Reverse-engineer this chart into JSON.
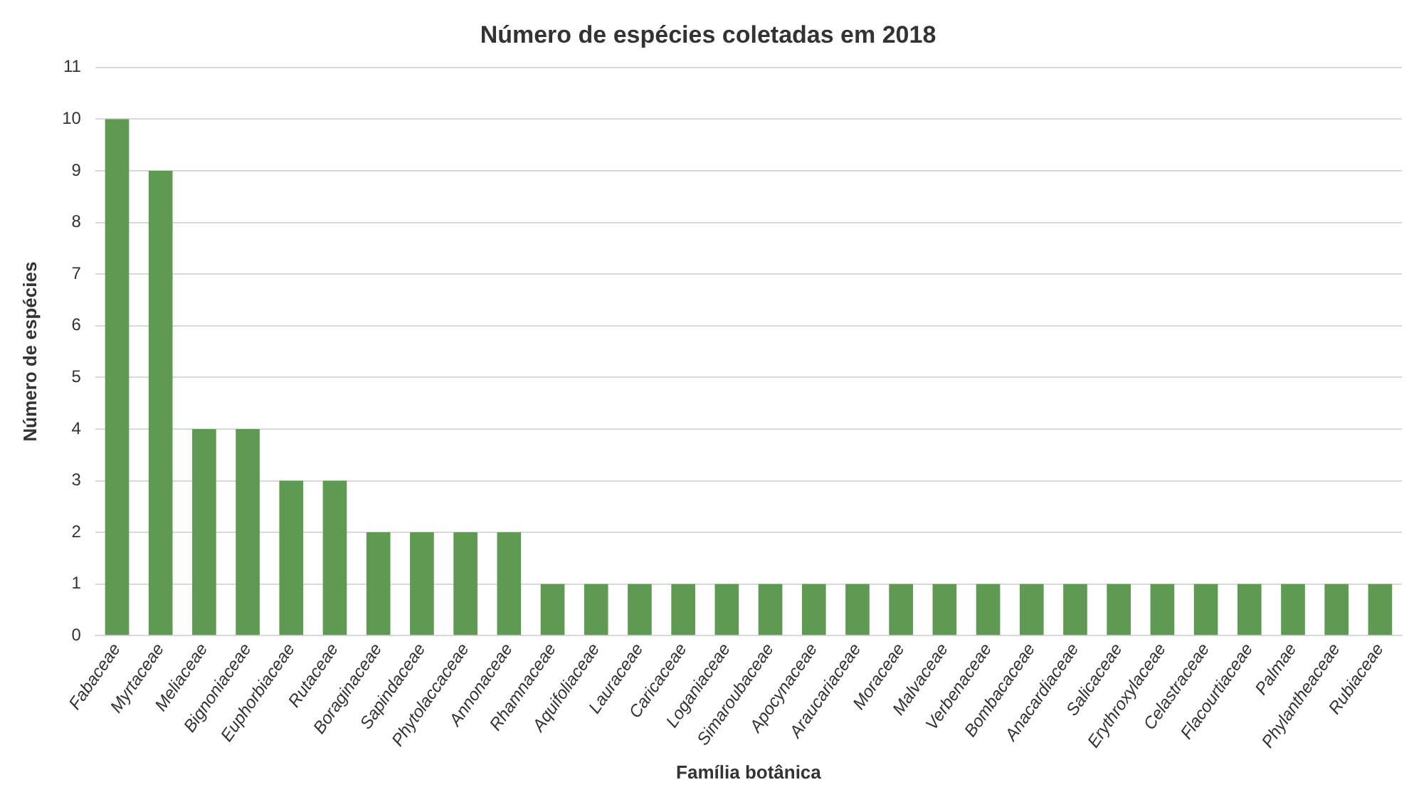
{
  "chart_data": {
    "type": "bar",
    "title": "Número de espécies coletadas em 2018",
    "xlabel": "Família botânica",
    "ylabel": "Número de espécies",
    "categories": [
      "Fabaceae",
      "Myrtaceae",
      "Meliaceae",
      "Bignoniaceae",
      "Euphorbiaceae",
      "Rutaceae",
      "Boraginaceae",
      "Sapindaceae",
      "Phytolaccaceae",
      "Annonaceae",
      "Rhamnaceae",
      "Aquifoliaceae",
      "Lauraceae",
      "Caricaceae",
      "Loganiaceae",
      "Simaroubaceae",
      "Apocynaceae",
      "Araucariaceae",
      "Moraceae",
      "Malvaceae",
      "Verbenaceae",
      "Bombacaceae",
      "Anacardiaceae",
      "Salicaceae",
      "Erythroxylaceae",
      "Celastraceae",
      "Flacourtiaceae",
      "Palmae",
      "Phylantheaceae",
      "Rubiaceae"
    ],
    "values": [
      10,
      9,
      4,
      4,
      3,
      3,
      2,
      2,
      2,
      2,
      1,
      1,
      1,
      1,
      1,
      1,
      1,
      1,
      1,
      1,
      1,
      1,
      1,
      1,
      1,
      1,
      1,
      1,
      1,
      1
    ],
    "color": "#5f9a52",
    "ylim": [
      0,
      11
    ],
    "yticks": [
      0,
      1,
      2,
      3,
      4,
      5,
      6,
      7,
      8,
      9,
      10,
      11
    ],
    "grid": "y"
  }
}
